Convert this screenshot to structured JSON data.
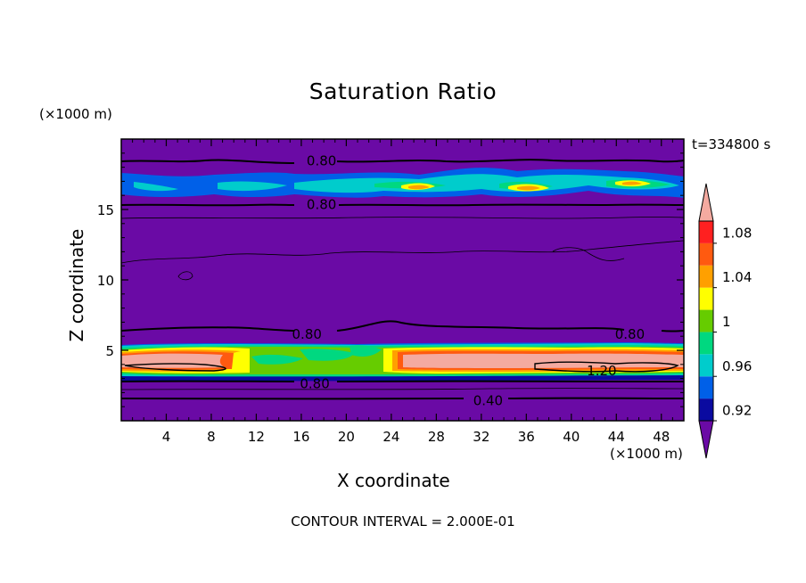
{
  "chart_data": {
    "type": "heatmap",
    "title": "Saturation Ratio",
    "xlabel": "X coordinate",
    "ylabel": "Z coordinate",
    "x_unit": "(×1000 m)",
    "y_unit": "(×1000 m)",
    "time_label": "t=334800 s",
    "footer": "CONTOUR INTERVAL = 2.000E-01",
    "xlim": [
      0,
      50
    ],
    "ylim": [
      0,
      20
    ],
    "x_ticks": [
      4,
      8,
      12,
      16,
      20,
      24,
      28,
      32,
      36,
      40,
      44,
      48
    ],
    "y_ticks": [
      5,
      10,
      15
    ],
    "colorbar": {
      "levels": [
        0.92,
        0.96,
        1,
        1.04,
        1.08
      ],
      "bins": [
        {
          "lo": null,
          "hi": 0.92,
          "color": "#6a0aa5"
        },
        {
          "lo": 0.92,
          "hi": 0.94,
          "color": "#0a0aa0"
        },
        {
          "lo": 0.94,
          "hi": 0.96,
          "color": "#0060e8"
        },
        {
          "lo": 0.96,
          "hi": 0.98,
          "color": "#00cccc"
        },
        {
          "lo": 0.98,
          "hi": 1.0,
          "color": "#00d880"
        },
        {
          "lo": 1.0,
          "hi": 1.02,
          "color": "#66cc00"
        },
        {
          "lo": 1.02,
          "hi": 1.04,
          "color": "#ffff00"
        },
        {
          "lo": 1.04,
          "hi": 1.06,
          "color": "#ffa000"
        },
        {
          "lo": 1.06,
          "hi": 1.08,
          "color": "#ff5a10"
        },
        {
          "lo": 1.08,
          "hi": 1.1,
          "color": "#ff2020"
        },
        {
          "lo": 1.1,
          "hi": null,
          "color": "#f4aaa0"
        }
      ]
    },
    "contour_labels": [
      {
        "x": 17.8,
        "z": 18.5,
        "text": "0.80"
      },
      {
        "x": 17.8,
        "z": 15.4,
        "text": "0.80"
      },
      {
        "x": 16.5,
        "z": 6.2,
        "text": "0.80"
      },
      {
        "x": 45.2,
        "z": 6.2,
        "text": "0.80"
      },
      {
        "x": 17.2,
        "z": 2.7,
        "text": "0.80"
      },
      {
        "x": 42.7,
        "z": 3.6,
        "text": "1.20"
      },
      {
        "x": 32.6,
        "z": 1.5,
        "text": "0.40"
      }
    ]
  }
}
